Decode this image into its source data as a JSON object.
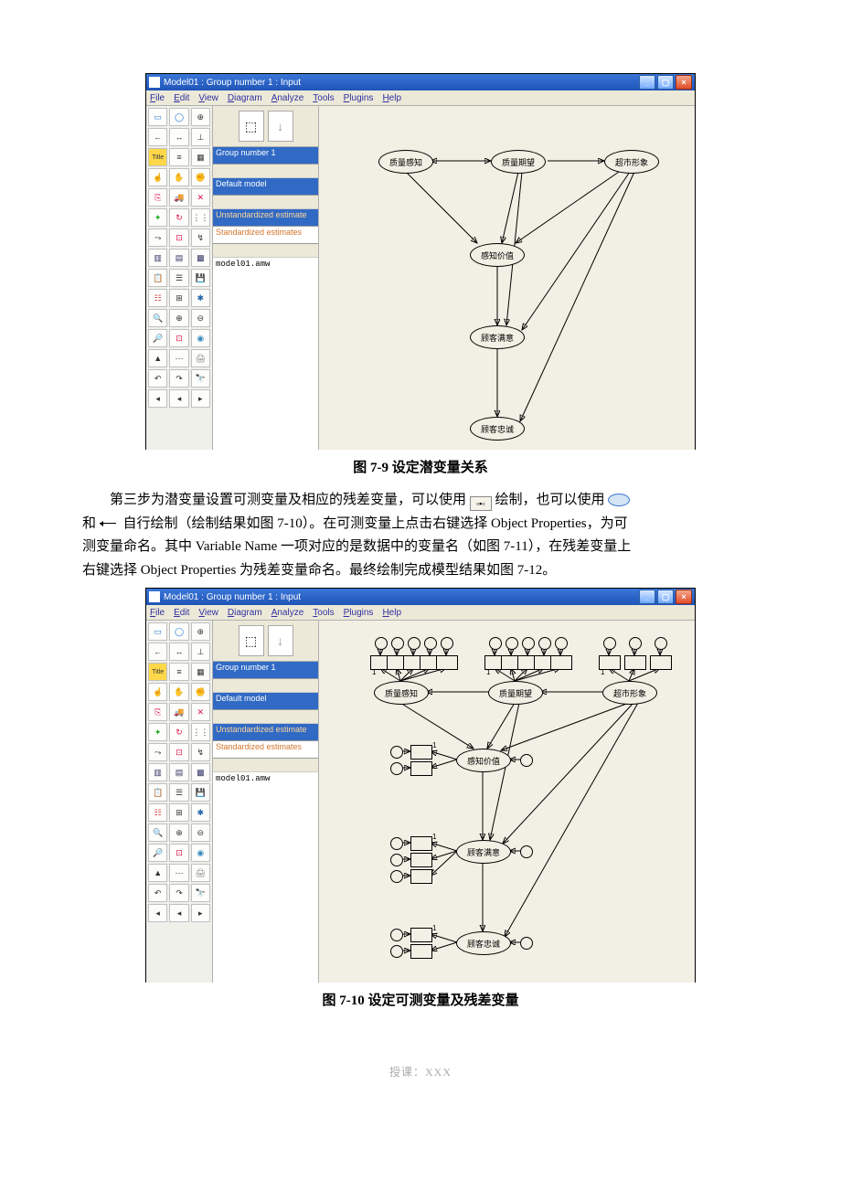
{
  "figure1": {
    "window_title": "Model01 : Group number 1 : Input",
    "menu": [
      "File",
      "Edit",
      "View",
      "Diagram",
      "Analyze",
      "Tools",
      "Plugins",
      "Help"
    ],
    "midpanel": {
      "group": "Group number 1",
      "default": "Default model",
      "est1": "Unstandardized estimate",
      "est2": "Standardized estimates",
      "filename": "model01.amw"
    },
    "latents": {
      "l1": "质量感知",
      "l2": "质量期望",
      "l3": "超市形象",
      "l4": "感知价值",
      "l5": "顾客满意",
      "l6": "顾客忠诚"
    },
    "caption": "图 7-9    设定潜变量关系"
  },
  "paragraph": {
    "line1_pre": "第三步为潜变量设置可测变量及相应的残差变量，可以使用",
    "line1_post": "绘制，也可以使用",
    "line2_pre": "和",
    "line2_mid": "自行绘制（绘制结果如图 7-10）。在可测变量上点击右键选择 Object Properties，为可",
    "line3": "测变量命名。其中 Variable Name 一项对应的是数据中的变量名（如图 7-11），在残差变量上",
    "line4": "右键选择 Object Properties 为残差变量命名。最终绘制完成模型结果如图 7-12。"
  },
  "figure2": {
    "window_title": "Model01 : Group number 1 : Input",
    "menu": [
      "File",
      "Edit",
      "View",
      "Diagram",
      "Analyze",
      "Tools",
      "Plugins",
      "Help"
    ],
    "midpanel": {
      "group": "Group number 1",
      "default": "Default model",
      "est1": "Unstandardized estimate",
      "est2": "Standardized estimates",
      "filename": "model01.amw"
    },
    "latents": {
      "l1": "质量感知",
      "l2": "质量期望",
      "l3": "超市形象",
      "l4": "感知价值",
      "l5": "顾客满意",
      "l6": "顾客忠诚"
    },
    "caption": "图 7-10    设定可测变量及残差变量"
  },
  "footer_text": "授课：XXX",
  "colors": {
    "titlebar_top": "#3a77d8",
    "titlebar_bottom": "#1f54b7",
    "window_bg": "#ece9d8",
    "canvas_bg": "#f2efe4",
    "highlight": "#316ac5",
    "orange_text": "#d4752c"
  }
}
